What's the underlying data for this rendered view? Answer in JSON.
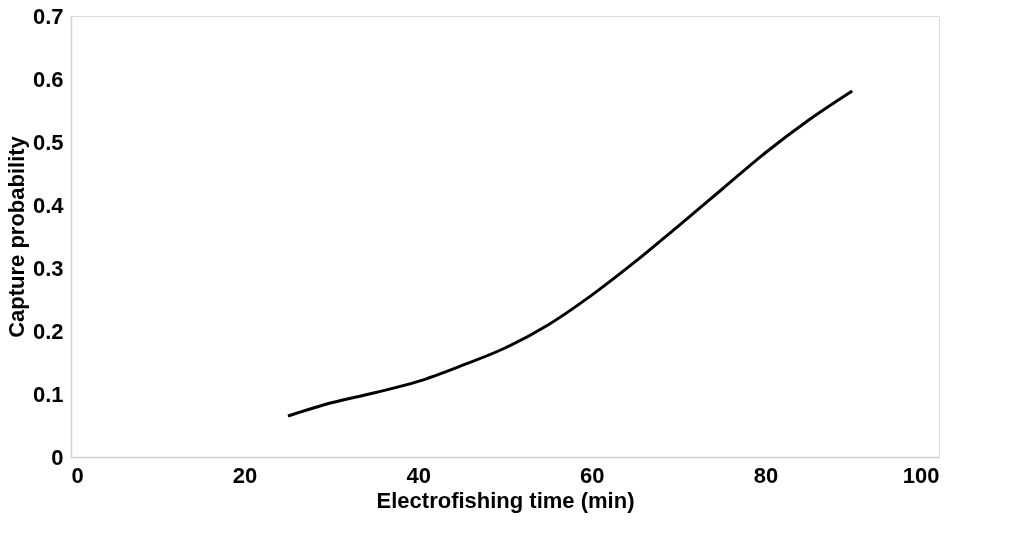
{
  "chart_data": {
    "type": "line",
    "xlabel": "Electrofishing time (min)",
    "ylabel": "Capture probability",
    "x": [
      25,
      30,
      35,
      40,
      45,
      50,
      55,
      60,
      65,
      70,
      75,
      80,
      85,
      90
    ],
    "series": [
      {
        "color": "#000000",
        "values": [
          0.065,
          0.086,
          0.102,
          0.12,
          0.145,
          0.173,
          0.21,
          0.257,
          0.31,
          0.367,
          0.425,
          0.483,
          0.535,
          0.581
        ]
      }
    ],
    "xlim": [
      0,
      100
    ],
    "xticks": [
      0,
      20,
      40,
      60,
      80,
      100
    ],
    "ylim": [
      0,
      0.7
    ],
    "yticks": [
      0,
      0.1,
      0.2,
      0.3,
      0.4,
      0.5,
      0.6,
      0.7
    ],
    "grid": false,
    "legend": false,
    "marker": "none",
    "line_style": "solid"
  }
}
